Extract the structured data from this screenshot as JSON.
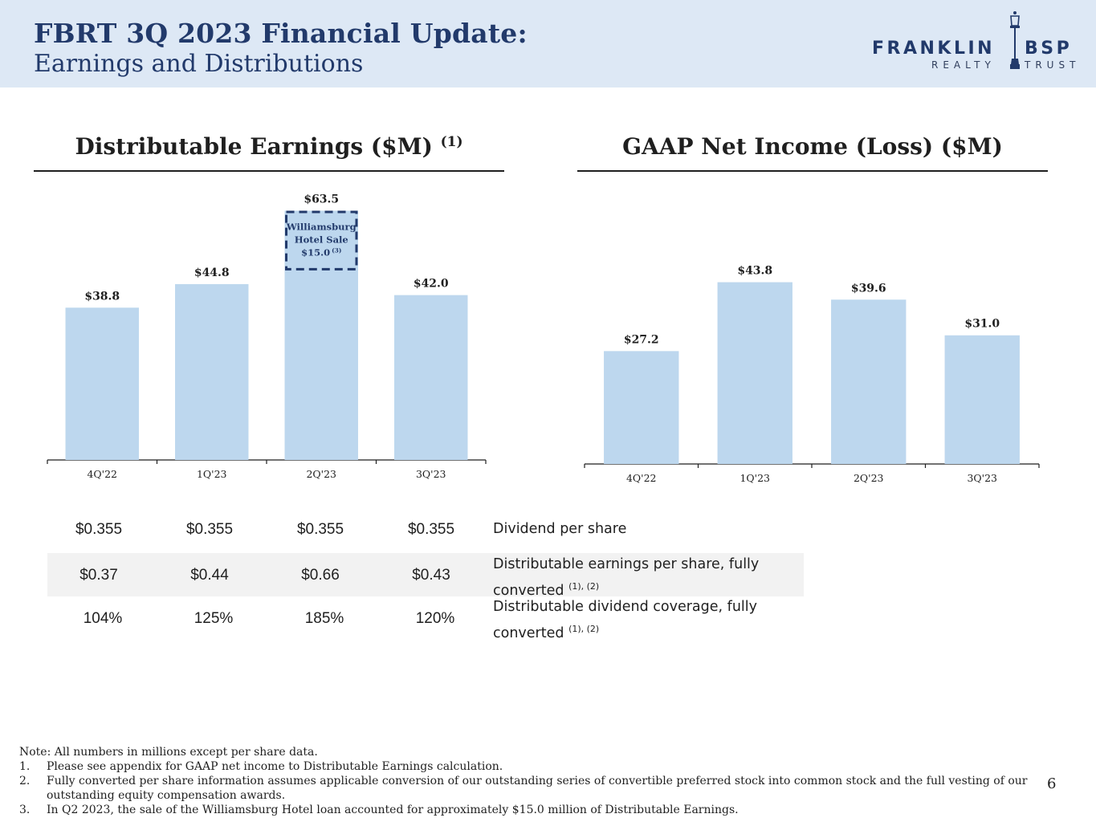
{
  "header": {
    "title_line1": "FBRT 3Q 2023 Financial Update:",
    "title_line2": "Earnings and Distributions",
    "logo_main_left": "FRANKLIN",
    "logo_main_right": "BSP",
    "logo_sub_left": "REALTY",
    "logo_sub_right": "TRUST"
  },
  "colors": {
    "header_bg": "#dde8f5",
    "title": "#223a6b",
    "bar": "#bdd7ee",
    "annotation_border": "#223a6b",
    "table_highlight": "#f2f2f2"
  },
  "chart_data": [
    {
      "type": "bar",
      "title": "Distributable Earnings ($M)",
      "title_footnote": "(1)",
      "categories": [
        "4Q'22",
        "1Q'23",
        "2Q'23",
        "3Q'23"
      ],
      "values": [
        38.8,
        44.8,
        63.5,
        42.0
      ],
      "data_labels": [
        "$38.8",
        "$44.8",
        "$63.5",
        "$42.0"
      ],
      "annotation": {
        "category": "2Q'23",
        "line1": "Williamsburg",
        "line2": "Hotel Sale",
        "line3": "$15.0",
        "footnote": "(3)",
        "value": 15.0,
        "style": "dashed-box"
      }
    },
    {
      "type": "bar",
      "title": "GAAP Net Income (Loss) ($M)",
      "categories": [
        "4Q'22",
        "1Q'23",
        "2Q'23",
        "3Q'23"
      ],
      "values": [
        27.2,
        43.8,
        39.6,
        31.0
      ],
      "data_labels": [
        "$27.2",
        "$43.8",
        "$39.6",
        "$31.0"
      ]
    }
  ],
  "table": {
    "rows": [
      {
        "values": [
          "$0.355",
          "$0.355",
          "$0.355",
          "$0.355"
        ],
        "label": "Dividend per share",
        "label_line2": "",
        "footnote": ""
      },
      {
        "values": [
          "$0.37",
          "$0.44",
          "$0.66",
          "$0.43"
        ],
        "label": "Distributable earnings per share, fully",
        "label_line2": "converted",
        "footnote": "(1), (2)"
      },
      {
        "values": [
          "104%",
          "125%",
          "185%",
          "120%"
        ],
        "label": "Distributable dividend coverage, fully",
        "label_line2": "converted",
        "footnote": "(1), (2)"
      }
    ]
  },
  "notes": {
    "intro": "Note: All numbers in millions except per share data.",
    "items": [
      {
        "num": "1.",
        "text": "Please see appendix for GAAP net income to Distributable Earnings calculation."
      },
      {
        "num": "2.",
        "text": "Fully converted per share information assumes applicable conversion of our outstanding series of convertible preferred stock into common stock and the full vesting of our outstanding equity compensation awards."
      },
      {
        "num": "3.",
        "text": "In Q2 2023, the sale of the Williamsburg Hotel loan accounted for approximately $15.0 million of Distributable Earnings."
      }
    ]
  },
  "page_number": "6"
}
